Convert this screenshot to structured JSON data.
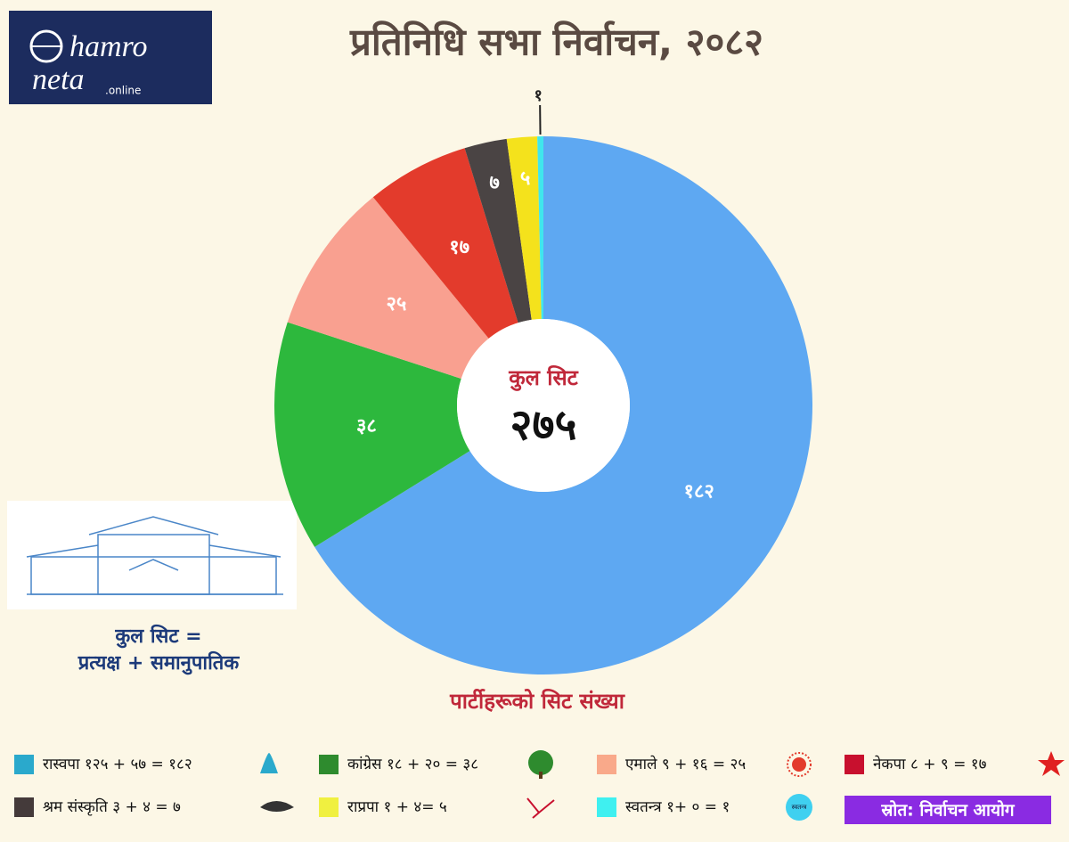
{
  "logo": {
    "line1": "hamro",
    "line2": "neta",
    "suffix": ".online"
  },
  "side_caption": {
    "line1": "कुल सिट =",
    "line2": "प्रत्यक्ष + समानुपातिक"
  },
  "source": "स्रोत: निर्वाचन आयोग",
  "chart_data": {
    "type": "donut",
    "title": "प्रतिनिधि सभा निर्वाचन, २०८२",
    "subtitle": "पार्टीहरूको  सिट संख्या",
    "center_label": "कुल सिट",
    "center_value_label": "२७५",
    "categories": [
      "रास्वपा  १२५ + ५७ = १८२",
      "कांग्रेस  १८ + २० = ३८",
      "एमाले ९ + १६ = २५",
      "नेकपा  ८ + ९  = १७",
      "श्रम संस्कृति  ३ + ४ = ७",
      "राप्रपा  १ + ४= ५",
      "स्वतन्त्र १+ ० = १"
    ],
    "values": [
      182,
      38,
      25,
      17,
      7,
      5,
      1
    ],
    "value_labels": [
      "१८२",
      "३८",
      "२५",
      "१७",
      "७",
      "५",
      "१"
    ],
    "colors": [
      "#5ea8f2",
      "#2db83d",
      "#f9a090",
      "#e33b2c",
      "#4a4444",
      "#f4e21c",
      "#40e6ec"
    ],
    "legend_colors": [
      "#2aa9cc",
      "#2e8b2e",
      "#f9a98a",
      "#c8102e",
      "#443a3a",
      "#f0f040",
      "#3ff0f0"
    ],
    "icon_label": "स्वतन्त्र"
  }
}
